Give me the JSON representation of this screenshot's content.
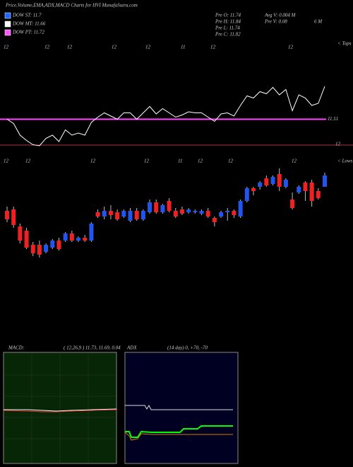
{
  "chart_data": {
    "type": "candlestick",
    "title": "Price,Volume,EMA,ADX,MACD Charts for HVI MunafaSutra.com",
    "dow": [
      {
        "text": "DOW ST: 11.7",
        "color": "#2266ff"
      },
      {
        "text": "DOW MT: 11.66",
        "color": "#ffffff"
      },
      {
        "text": "DOW PT: 11.72",
        "color": "#ff55ff"
      }
    ],
    "stats": [
      "Pre  O: 11.74",
      "Pre  H: 11.84",
      "Pre  L: 11.74",
      "Pre  C: 11.82",
      "Avg V: 0.004  M",
      "Pre  V: 0.08",
      "6  M"
    ],
    "top_dates": [
      "12",
      "12",
      "12",
      "12",
      "12",
      "11",
      "12",
      "12"
    ],
    "low_dates": [
      "12",
      "12",
      "12",
      "12",
      "11",
      "12",
      "12",
      "12"
    ],
    "tops_label": "< Tops",
    "lows_label": "< Lows",
    "level": 11.51,
    "level_color": "#ff44ff",
    "right_tick": "12",
    "up_color": "#2255ee",
    "down_color": "#ee2222",
    "ylim": [
      11.2,
      11.9
    ],
    "ohlc": [
      [
        11.57,
        11.6,
        11.49,
        11.51
      ],
      [
        11.58,
        11.6,
        11.45,
        11.47
      ],
      [
        11.46,
        11.48,
        11.34,
        11.36
      ],
      [
        11.43,
        11.45,
        11.3,
        11.31
      ],
      [
        11.33,
        11.35,
        11.25,
        11.27
      ],
      [
        11.33,
        11.36,
        11.24,
        11.26
      ],
      [
        11.28,
        11.34,
        11.27,
        11.33
      ],
      [
        11.31,
        11.37,
        11.3,
        11.36
      ],
      [
        11.36,
        11.38,
        11.29,
        11.3
      ],
      [
        11.36,
        11.42,
        11.35,
        11.41
      ],
      [
        11.41,
        11.43,
        11.35,
        11.36
      ],
      [
        11.36,
        11.39,
        11.35,
        11.38
      ],
      [
        11.38,
        11.4,
        11.35,
        11.36
      ],
      [
        11.36,
        11.49,
        11.35,
        11.48
      ],
      [
        11.56,
        11.58,
        11.52,
        11.53
      ],
      [
        11.53,
        11.6,
        11.51,
        11.57
      ],
      [
        11.57,
        11.61,
        11.51,
        11.54
      ],
      [
        11.56,
        11.58,
        11.5,
        11.51
      ],
      [
        11.53,
        11.58,
        11.52,
        11.57
      ],
      [
        11.5,
        11.59,
        11.49,
        11.57
      ],
      [
        11.57,
        11.59,
        11.5,
        11.51
      ],
      [
        11.51,
        11.58,
        11.5,
        11.57
      ],
      [
        11.56,
        11.65,
        11.55,
        11.63
      ],
      [
        11.63,
        11.65,
        11.55,
        11.56
      ],
      [
        11.56,
        11.62,
        11.55,
        11.61
      ],
      [
        11.64,
        11.66,
        11.56,
        11.57
      ],
      [
        11.57,
        11.59,
        11.52,
        11.53
      ],
      [
        11.58,
        11.6,
        11.54,
        11.55
      ],
      [
        11.56,
        11.59,
        11.55,
        11.58
      ],
      [
        11.56,
        11.58,
        11.55,
        11.57
      ],
      [
        11.55,
        11.58,
        11.54,
        11.57
      ],
      [
        11.57,
        11.59,
        11.52,
        11.53
      ],
      [
        11.52,
        11.53,
        11.46,
        11.49
      ],
      [
        11.53,
        11.57,
        11.52,
        11.56
      ],
      [
        11.56,
        11.59,
        11.5,
        11.57
      ],
      [
        11.57,
        11.58,
        11.52,
        11.54
      ],
      [
        11.53,
        11.65,
        11.52,
        11.64
      ],
      [
        11.64,
        11.74,
        11.63,
        11.73
      ],
      [
        11.73,
        11.74,
        11.68,
        11.71
      ],
      [
        11.74,
        11.78,
        11.72,
        11.77
      ],
      [
        11.8,
        11.82,
        11.74,
        11.75
      ],
      [
        11.76,
        11.82,
        11.75,
        11.81
      ],
      [
        11.83,
        11.87,
        11.71,
        11.74
      ],
      [
        11.74,
        11.8,
        11.73,
        11.79
      ],
      [
        11.65,
        11.7,
        11.58,
        11.59
      ],
      [
        11.7,
        11.75,
        11.69,
        11.74
      ],
      [
        11.77,
        11.78,
        11.64,
        11.71
      ],
      [
        11.77,
        11.79,
        11.6,
        11.64
      ],
      [
        11.71,
        11.73,
        11.65,
        11.66
      ],
      [
        11.74,
        11.84,
        11.74,
        11.82
      ]
    ],
    "macd_label": "MACD:",
    "macd_text": "( 12,26,9 ) 11.73,  11.69,  0.04",
    "adx_label": "ADX",
    "adx_text": "(14  day) 0, +70, -70"
  }
}
